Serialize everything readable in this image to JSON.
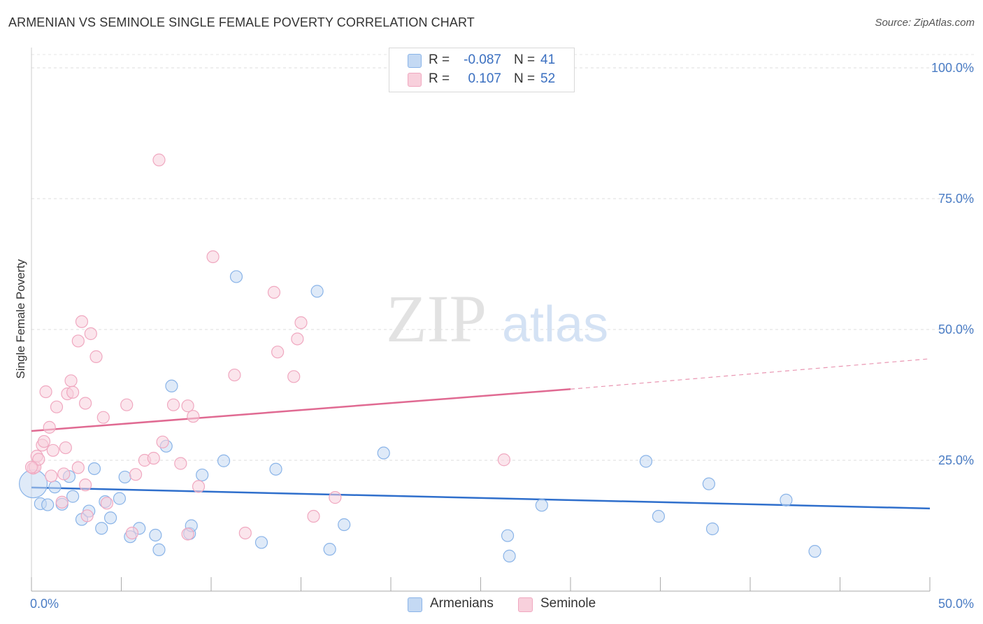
{
  "chart_data": {
    "type": "scatter",
    "title": "ARMENIAN VS SEMINOLE SINGLE FEMALE POVERTY CORRELATION CHART",
    "source": "Source: ZipAtlas.com",
    "ylabel": "Single Female Poverty",
    "xlabel": "",
    "xlim": [
      0,
      50
    ],
    "ylim": [
      0,
      100
    ],
    "x_tick_labels": [
      "0.0%",
      "50.0%"
    ],
    "y_ticks": [
      25,
      50,
      75,
      100
    ],
    "y_tick_labels": [
      "25.0%",
      "50.0%",
      "75.0%",
      "100.0%"
    ],
    "grid": true,
    "watermark": {
      "zip": "ZIP",
      "atlas": "atlas"
    },
    "legend": {
      "r_label": "R =",
      "n_label": "N =",
      "entries": [
        {
          "r": "-0.087",
          "n": "41"
        },
        {
          "r": "0.107",
          "n": "52"
        }
      ]
    },
    "series": [
      {
        "name": "Armenians",
        "color": "#8ab4e8",
        "fill": "#c4d9f3",
        "line_color": "#2f6fcc",
        "trend": {
          "x0": 0,
          "y0": 19.8,
          "x1": 50,
          "y1": 15.8
        },
        "points": [
          [
            0.1,
            20.5
          ],
          [
            0.5,
            16.7
          ],
          [
            0.9,
            16.5
          ],
          [
            1.3,
            19.9
          ],
          [
            1.7,
            16.6
          ],
          [
            2.1,
            21.9
          ],
          [
            2.3,
            18.1
          ],
          [
            2.8,
            13.7
          ],
          [
            3.2,
            15.3
          ],
          [
            3.5,
            23.4
          ],
          [
            3.9,
            12.0
          ],
          [
            4.1,
            17.1
          ],
          [
            4.4,
            14.0
          ],
          [
            4.9,
            17.7
          ],
          [
            5.2,
            21.8
          ],
          [
            5.5,
            10.4
          ],
          [
            6.0,
            12.0
          ],
          [
            6.9,
            10.7
          ],
          [
            7.1,
            7.9
          ],
          [
            7.5,
            27.7
          ],
          [
            7.8,
            39.2
          ],
          [
            8.8,
            11.0
          ],
          [
            8.9,
            12.5
          ],
          [
            9.5,
            22.2
          ],
          [
            10.7,
            24.9
          ],
          [
            11.4,
            60.1
          ],
          [
            12.8,
            9.3
          ],
          [
            13.6,
            23.3
          ],
          [
            15.9,
            57.3
          ],
          [
            16.6,
            8.0
          ],
          [
            17.4,
            12.7
          ],
          [
            19.6,
            26.4
          ],
          [
            26.5,
            10.6
          ],
          [
            26.6,
            6.7
          ],
          [
            28.4,
            16.4
          ],
          [
            34.2,
            24.8
          ],
          [
            34.9,
            14.3
          ],
          [
            37.7,
            20.5
          ],
          [
            37.9,
            11.9
          ],
          [
            42.0,
            17.4
          ],
          [
            43.6,
            7.6
          ]
        ]
      },
      {
        "name": "Seminole",
        "color": "#f0a8c0",
        "fill": "#f8d0dc",
        "line_color": "#e06a92",
        "trend": {
          "x0": 0,
          "y0": 30.6,
          "x1": 30,
          "y1": 38.6
        },
        "trend_extension": {
          "x0": 30,
          "y0": 38.6,
          "x1": 50,
          "y1": 44.4
        },
        "points": [
          [
            0.1,
            23.5
          ],
          [
            0.2,
            23.7
          ],
          [
            0.3,
            25.8
          ],
          [
            0.4,
            25.2
          ],
          [
            0.6,
            27.9
          ],
          [
            0.7,
            28.6
          ],
          [
            0.8,
            38.1
          ],
          [
            1.0,
            31.3
          ],
          [
            1.1,
            22.0
          ],
          [
            1.2,
            26.9
          ],
          [
            1.4,
            35.2
          ],
          [
            1.7,
            17.0
          ],
          [
            1.8,
            22.4
          ],
          [
            1.9,
            27.4
          ],
          [
            2.0,
            37.7
          ],
          [
            2.2,
            40.2
          ],
          [
            2.3,
            38.0
          ],
          [
            2.6,
            23.6
          ],
          [
            2.6,
            47.8
          ],
          [
            2.8,
            51.5
          ],
          [
            3.0,
            20.3
          ],
          [
            3.0,
            35.9
          ],
          [
            3.1,
            14.4
          ],
          [
            3.3,
            49.2
          ],
          [
            3.6,
            44.8
          ],
          [
            4.0,
            33.2
          ],
          [
            4.2,
            16.8
          ],
          [
            5.3,
            35.6
          ],
          [
            5.6,
            11.1
          ],
          [
            5.8,
            22.3
          ],
          [
            6.3,
            25.0
          ],
          [
            6.8,
            25.4
          ],
          [
            7.1,
            82.4
          ],
          [
            7.3,
            28.5
          ],
          [
            7.9,
            35.6
          ],
          [
            8.3,
            24.4
          ],
          [
            8.7,
            10.9
          ],
          [
            8.7,
            35.4
          ],
          [
            9.0,
            33.4
          ],
          [
            9.3,
            20.0
          ],
          [
            10.1,
            63.9
          ],
          [
            11.3,
            41.3
          ],
          [
            11.9,
            11.1
          ],
          [
            13.5,
            57.1
          ],
          [
            13.7,
            45.7
          ],
          [
            14.6,
            41.0
          ],
          [
            14.8,
            48.2
          ],
          [
            15.0,
            51.3
          ],
          [
            15.7,
            14.3
          ],
          [
            16.9,
            17.9
          ],
          [
            26.3,
            25.1
          ],
          [
            0.0,
            23.7
          ]
        ]
      }
    ]
  }
}
